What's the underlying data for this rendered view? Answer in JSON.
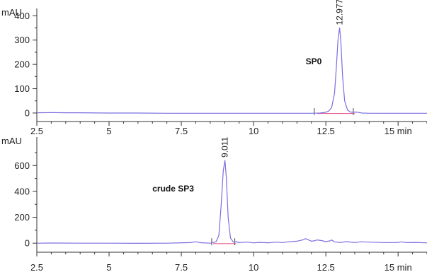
{
  "chart_data": [
    {
      "type": "line",
      "y_unit": "mAU",
      "x_unit": "min",
      "xlim": [
        2.5,
        16.0
      ],
      "ylim": [
        -35,
        430
      ],
      "x_ticks": [
        {
          "value": 2.5,
          "label": "2.5"
        },
        {
          "value": 5,
          "label": "5"
        },
        {
          "value": 7.5,
          "label": "7.5"
        },
        {
          "value": 10,
          "label": "10"
        },
        {
          "value": 12.5,
          "label": "12.5"
        },
        {
          "value": 15,
          "label": "15 min"
        }
      ],
      "y_ticks": [
        0,
        100,
        200,
        300,
        400
      ],
      "y_ticks_minor": [
        50,
        150,
        250,
        350
      ],
      "grid": false,
      "series": [
        {
          "name": "SP0",
          "color": "#7b6fe0",
          "x": [
            2.5,
            3.0,
            3.5,
            4.0,
            5.0,
            6.0,
            7.0,
            8.0,
            9.0,
            10.0,
            11.0,
            12.0,
            12.3,
            12.5,
            12.6,
            12.7,
            12.8,
            12.86,
            12.92,
            12.977,
            13.02,
            13.08,
            13.15,
            13.25,
            13.35,
            13.45,
            13.55,
            13.65,
            13.75,
            14.0,
            14.5,
            15.0,
            15.5,
            16.0
          ],
          "y": [
            1,
            2,
            1,
            1,
            0,
            0,
            -1,
            -1,
            -1,
            -1,
            -1,
            -1,
            0,
            3,
            8,
            22,
            80,
            180,
            300,
            350,
            290,
            150,
            50,
            12,
            4,
            3,
            4,
            2,
            0,
            -1,
            -1,
            -1,
            -1,
            -1
          ]
        }
      ],
      "baseline": {
        "color": "#e0457b",
        "x": [
          12.2,
          13.5
        ],
        "y": [
          -2,
          -2
        ]
      },
      "peak_labels": [
        {
          "x": 12.977,
          "y": 350,
          "text": "12.977"
        }
      ],
      "annotations": [
        {
          "x": 11.8,
          "y": 200,
          "text": "SP0"
        }
      ],
      "integration_marks": [
        {
          "x": 12.1
        },
        {
          "x": 13.45
        }
      ]
    },
    {
      "type": "line",
      "y_unit": "mAU",
      "x_unit": "min",
      "xlim": [
        2.5,
        16.0
      ],
      "ylim": [
        -70,
        820
      ],
      "x_ticks": [
        {
          "value": 2.5,
          "label": "2.5"
        },
        {
          "value": 5,
          "label": "5"
        },
        {
          "value": 7.5,
          "label": "7.5"
        },
        {
          "value": 10,
          "label": "10"
        },
        {
          "value": 12.5,
          "label": "12.5"
        },
        {
          "value": 15,
          "label": "15 min"
        }
      ],
      "y_ticks": [
        0,
        200,
        400,
        600
      ],
      "y_ticks_minor": [
        100,
        300,
        500,
        700
      ],
      "grid": false,
      "series": [
        {
          "name": "crude SP3",
          "color": "#7b6fe0",
          "x": [
            2.5,
            3.0,
            4.0,
            5.0,
            6.0,
            7.0,
            7.8,
            8.0,
            8.2,
            8.5,
            8.7,
            8.8,
            8.88,
            8.95,
            9.011,
            9.06,
            9.12,
            9.2,
            9.3,
            9.4,
            9.5,
            9.8,
            10.0,
            10.2,
            10.5,
            10.8,
            11.0,
            11.2,
            11.5,
            11.7,
            11.8,
            11.9,
            12.0,
            12.1,
            12.2,
            12.35,
            12.5,
            12.65,
            12.7,
            12.8,
            13.0,
            13.2,
            13.5,
            13.7,
            14.0,
            14.5,
            15.0,
            15.1,
            15.3,
            15.6,
            16.0
          ],
          "y": [
            0,
            1,
            0,
            0,
            -1,
            0,
            4,
            10,
            3,
            0,
            10,
            60,
            300,
            560,
            640,
            500,
            200,
            40,
            8,
            12,
            5,
            8,
            2,
            6,
            3,
            8,
            5,
            10,
            15,
            25,
            35,
            25,
            15,
            18,
            25,
            20,
            12,
            18,
            25,
            10,
            5,
            12,
            5,
            10,
            8,
            5,
            5,
            10,
            4,
            6,
            2
          ]
        }
      ],
      "baseline": {
        "color": "#e0457b",
        "x": [
          8.6,
          9.4
        ],
        "y": [
          -4,
          -4
        ]
      },
      "peak_labels": [
        {
          "x": 9.011,
          "y": 640,
          "text": "9.011"
        }
      ],
      "annotations": [
        {
          "x": 6.5,
          "y": 400,
          "text": "crude SP3"
        }
      ],
      "integration_marks": [
        {
          "x": 8.55
        },
        {
          "x": 9.35
        }
      ]
    }
  ]
}
